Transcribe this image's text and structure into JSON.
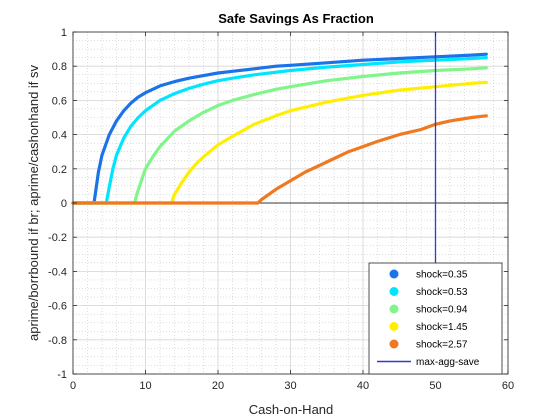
{
  "chart_data": {
    "type": "line",
    "title": "Safe Savings As Fraction",
    "xlabel": "Cash-on-Hand",
    "ylabel": "aprime/borrbound if br; aprime/cashonhand if sv",
    "xlim": [
      0,
      60
    ],
    "ylim": [
      -1,
      1
    ],
    "xticks": [
      0,
      10,
      20,
      30,
      40,
      50,
      60
    ],
    "yticks": [
      -1,
      -0.8,
      -0.6,
      -0.4,
      -0.2,
      0,
      0.2,
      0.4,
      0.6,
      0.8,
      1
    ],
    "grid": true,
    "minor_grid": true,
    "legend_position": "bottom-right",
    "series": [
      {
        "name": "shock=0.35",
        "color": "#1a73e8",
        "x": [
          0,
          2.9,
          3.1,
          3.5,
          4,
          5,
          6,
          7,
          8,
          9,
          10,
          12,
          14,
          16,
          18,
          20,
          22,
          25,
          28,
          30,
          35,
          40,
          45,
          50,
          55,
          57
        ],
        "y": [
          0,
          0,
          0.06,
          0.18,
          0.28,
          0.4,
          0.48,
          0.54,
          0.585,
          0.62,
          0.645,
          0.685,
          0.71,
          0.73,
          0.745,
          0.76,
          0.77,
          0.785,
          0.8,
          0.805,
          0.82,
          0.835,
          0.845,
          0.855,
          0.865,
          0.87
        ]
      },
      {
        "name": "shock=0.53",
        "color": "#00e5ff",
        "x": [
          0,
          4.6,
          4.9,
          5.5,
          6,
          7,
          8,
          9,
          10,
          12,
          14,
          16,
          18,
          20,
          22,
          25,
          28,
          30,
          35,
          40,
          45,
          50,
          55,
          57
        ],
        "y": [
          0,
          0,
          0.07,
          0.2,
          0.28,
          0.38,
          0.45,
          0.5,
          0.54,
          0.6,
          0.64,
          0.67,
          0.695,
          0.715,
          0.73,
          0.75,
          0.765,
          0.775,
          0.795,
          0.81,
          0.825,
          0.835,
          0.845,
          0.85
        ]
      },
      {
        "name": "shock=0.94",
        "color": "#80f58a",
        "x": [
          0,
          8.5,
          8.8,
          9.5,
          10,
          11,
          12,
          14,
          16,
          18,
          20,
          22,
          25,
          28,
          30,
          35,
          40,
          45,
          50,
          55,
          57
        ],
        "y": [
          0,
          0,
          0.05,
          0.14,
          0.2,
          0.27,
          0.33,
          0.42,
          0.48,
          0.53,
          0.57,
          0.6,
          0.635,
          0.665,
          0.68,
          0.715,
          0.74,
          0.76,
          0.775,
          0.785,
          0.79
        ]
      },
      {
        "name": "shock=1.45",
        "color": "#ffee00",
        "x": [
          0,
          13.6,
          14,
          15,
          16,
          17,
          18,
          20,
          22,
          25,
          28,
          30,
          35,
          40,
          45,
          50,
          55,
          57
        ],
        "y": [
          0,
          0,
          0.05,
          0.12,
          0.18,
          0.23,
          0.27,
          0.34,
          0.39,
          0.46,
          0.51,
          0.54,
          0.59,
          0.63,
          0.66,
          0.68,
          0.7,
          0.705
        ]
      },
      {
        "name": "shock=2.57",
        "color": "#f07820",
        "x": [
          0,
          25.5,
          26,
          27,
          28,
          30,
          32,
          35,
          38,
          40,
          42,
          45,
          48,
          50,
          52,
          55,
          57
        ],
        "y": [
          0,
          0,
          0.02,
          0.05,
          0.08,
          0.13,
          0.18,
          0.24,
          0.3,
          0.33,
          0.36,
          0.4,
          0.43,
          0.46,
          0.48,
          0.5,
          0.51
        ]
      }
    ],
    "vlines": [
      {
        "name": "max-agg-save",
        "x": 50,
        "color": "#2a3bd6"
      }
    ]
  }
}
